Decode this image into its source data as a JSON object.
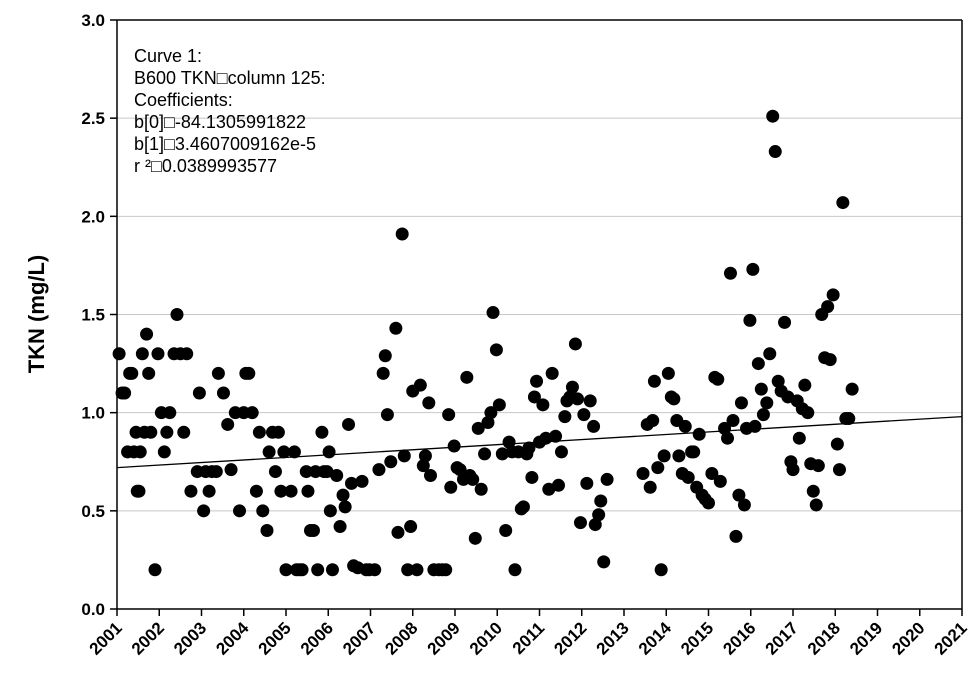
{
  "chart_data": {
    "type": "scatter",
    "ylabel": "TKN (mg/L)",
    "xlabel": "",
    "xlim": [
      2001,
      2021
    ],
    "ylim": [
      0,
      3.0
    ],
    "x_ticks": [
      "2001",
      "2002",
      "2003",
      "2004",
      "2005",
      "2006",
      "2007",
      "2008",
      "2009",
      "2010",
      "2011",
      "2012",
      "2013",
      "2014",
      "2015",
      "2016",
      "2017",
      "2018",
      "2019",
      "2020",
      "2021"
    ],
    "y_ticks": [
      "0.0",
      "0.5",
      "1.0",
      "1.5",
      "2.0",
      "2.5",
      "3.0"
    ],
    "grid": "horizontal",
    "annotation_lines": [
      "Curve 1:",
      "B600 TKN□column 125:",
      "Coefficients:",
      "b[0]□-84.1305991822",
      "b[1]□3.4607009162e-5",
      "r ²□0.0389993577"
    ],
    "trendline": {
      "x": [
        2001.0,
        2021.0
      ],
      "y": [
        0.72,
        0.98
      ]
    },
    "points": [
      [
        2001.05,
        1.3
      ],
      [
        2001.12,
        1.1
      ],
      [
        2001.18,
        1.1
      ],
      [
        2001.25,
        0.8
      ],
      [
        2001.3,
        1.2
      ],
      [
        2001.35,
        1.2
      ],
      [
        2001.4,
        0.8
      ],
      [
        2001.45,
        0.9
      ],
      [
        2001.48,
        0.6
      ],
      [
        2001.52,
        0.6
      ],
      [
        2001.55,
        0.8
      ],
      [
        2001.6,
        1.3
      ],
      [
        2001.65,
        0.9
      ],
      [
        2001.7,
        1.4
      ],
      [
        2001.75,
        1.2
      ],
      [
        2001.8,
        0.9
      ],
      [
        2001.9,
        0.2
      ],
      [
        2001.97,
        1.3
      ],
      [
        2002.05,
        1.0
      ],
      [
        2002.12,
        0.8
      ],
      [
        2002.18,
        0.9
      ],
      [
        2002.25,
        1.0
      ],
      [
        2002.35,
        1.3
      ],
      [
        2002.42,
        1.5
      ],
      [
        2002.5,
        1.3
      ],
      [
        2002.58,
        0.9
      ],
      [
        2002.65,
        1.3
      ],
      [
        2002.75,
        0.6
      ],
      [
        2002.9,
        0.7
      ],
      [
        2002.95,
        1.1
      ],
      [
        2003.05,
        0.5
      ],
      [
        2003.1,
        0.7
      ],
      [
        2003.18,
        0.6
      ],
      [
        2003.25,
        0.7
      ],
      [
        2003.35,
        0.7
      ],
      [
        2003.4,
        1.2
      ],
      [
        2003.52,
        1.1
      ],
      [
        2003.62,
        0.94
      ],
      [
        2003.7,
        0.71
      ],
      [
        2003.8,
        1.0
      ],
      [
        2003.9,
        0.5
      ],
      [
        2004.0,
        1.0
      ],
      [
        2004.05,
        1.2
      ],
      [
        2004.12,
        1.2
      ],
      [
        2004.2,
        1.0
      ],
      [
        2004.3,
        0.6
      ],
      [
        2004.37,
        0.9
      ],
      [
        2004.45,
        0.5
      ],
      [
        2004.55,
        0.4
      ],
      [
        2004.6,
        0.8
      ],
      [
        2004.68,
        0.9
      ],
      [
        2004.75,
        0.7
      ],
      [
        2004.82,
        0.9
      ],
      [
        2004.88,
        0.6
      ],
      [
        2004.95,
        0.8
      ],
      [
        2005.0,
        0.2
      ],
      [
        2005.12,
        0.6
      ],
      [
        2005.2,
        0.8
      ],
      [
        2005.25,
        0.2
      ],
      [
        2005.32,
        0.2
      ],
      [
        2005.38,
        0.2
      ],
      [
        2005.48,
        0.7
      ],
      [
        2005.52,
        0.6
      ],
      [
        2005.58,
        0.4
      ],
      [
        2005.65,
        0.4
      ],
      [
        2005.7,
        0.7
      ],
      [
        2005.75,
        0.2
      ],
      [
        2005.85,
        0.9
      ],
      [
        2005.9,
        0.7
      ],
      [
        2005.97,
        0.7
      ],
      [
        2006.02,
        0.8
      ],
      [
        2006.05,
        0.5
      ],
      [
        2006.1,
        0.2
      ],
      [
        2006.2,
        0.68
      ],
      [
        2006.28,
        0.42
      ],
      [
        2006.35,
        0.58
      ],
      [
        2006.4,
        0.52
      ],
      [
        2006.48,
        0.94
      ],
      [
        2006.55,
        0.64
      ],
      [
        2006.6,
        0.22
      ],
      [
        2006.7,
        0.21
      ],
      [
        2006.8,
        0.65
      ],
      [
        2006.9,
        0.2
      ],
      [
        2006.97,
        0.2
      ],
      [
        2007.1,
        0.2
      ],
      [
        2007.2,
        0.71
      ],
      [
        2007.3,
        1.2
      ],
      [
        2007.35,
        1.29
      ],
      [
        2007.4,
        0.99
      ],
      [
        2007.48,
        0.75
      ],
      [
        2007.6,
        1.43
      ],
      [
        2007.65,
        0.39
      ],
      [
        2007.75,
        1.91
      ],
      [
        2007.8,
        0.78
      ],
      [
        2007.88,
        0.2
      ],
      [
        2007.95,
        0.42
      ],
      [
        2008.0,
        1.11
      ],
      [
        2008.1,
        0.2
      ],
      [
        2008.18,
        1.14
      ],
      [
        2008.25,
        0.73
      ],
      [
        2008.3,
        0.78
      ],
      [
        2008.38,
        1.05
      ],
      [
        2008.42,
        0.68
      ],
      [
        2008.5,
        0.2
      ],
      [
        2008.62,
        0.2
      ],
      [
        2008.7,
        0.2
      ],
      [
        2008.78,
        0.2
      ],
      [
        2008.85,
        0.99
      ],
      [
        2008.9,
        0.62
      ],
      [
        2008.98,
        0.83
      ],
      [
        2009.05,
        0.72
      ],
      [
        2009.12,
        0.71
      ],
      [
        2009.2,
        0.66
      ],
      [
        2009.28,
        1.18
      ],
      [
        2009.35,
        0.68
      ],
      [
        2009.42,
        0.66
      ],
      [
        2009.48,
        0.36
      ],
      [
        2009.55,
        0.92
      ],
      [
        2009.62,
        0.61
      ],
      [
        2009.7,
        0.79
      ],
      [
        2009.78,
        0.95
      ],
      [
        2009.85,
        1.0
      ],
      [
        2009.9,
        1.51
      ],
      [
        2009.98,
        1.32
      ],
      [
        2010.05,
        1.04
      ],
      [
        2010.12,
        0.79
      ],
      [
        2010.2,
        0.4
      ],
      [
        2010.28,
        0.85
      ],
      [
        2010.35,
        0.8
      ],
      [
        2010.42,
        0.2
      ],
      [
        2010.5,
        0.8
      ],
      [
        2010.57,
        0.51
      ],
      [
        2010.62,
        0.52
      ],
      [
        2010.7,
        0.79
      ],
      [
        2010.75,
        0.82
      ],
      [
        2010.82,
        0.67
      ],
      [
        2010.88,
        1.08
      ],
      [
        2010.93,
        1.16
      ],
      [
        2011.0,
        0.85
      ],
      [
        2011.08,
        1.04
      ],
      [
        2011.15,
        0.87
      ],
      [
        2011.22,
        0.61
      ],
      [
        2011.3,
        1.2
      ],
      [
        2011.38,
        0.88
      ],
      [
        2011.45,
        0.63
      ],
      [
        2011.52,
        0.8
      ],
      [
        2011.6,
        0.98
      ],
      [
        2011.65,
        1.06
      ],
      [
        2011.72,
        1.08
      ],
      [
        2011.78,
        1.13
      ],
      [
        2011.85,
        1.35
      ],
      [
        2011.9,
        1.07
      ],
      [
        2011.97,
        0.44
      ],
      [
        2012.05,
        0.99
      ],
      [
        2012.12,
        0.64
      ],
      [
        2012.2,
        1.06
      ],
      [
        2012.28,
        0.93
      ],
      [
        2012.32,
        0.43
      ],
      [
        2012.4,
        0.48
      ],
      [
        2012.45,
        0.55
      ],
      [
        2012.52,
        0.24
      ],
      [
        2012.6,
        0.66
      ],
      [
        2013.45,
        0.69
      ],
      [
        2013.55,
        0.94
      ],
      [
        2013.62,
        0.62
      ],
      [
        2013.68,
        0.96
      ],
      [
        2013.72,
        1.16
      ],
      [
        2013.8,
        0.72
      ],
      [
        2013.88,
        0.2
      ],
      [
        2013.95,
        0.78
      ],
      [
        2014.05,
        1.2
      ],
      [
        2014.12,
        1.08
      ],
      [
        2014.18,
        1.07
      ],
      [
        2014.25,
        0.96
      ],
      [
        2014.3,
        0.78
      ],
      [
        2014.38,
        0.69
      ],
      [
        2014.45,
        0.93
      ],
      [
        2014.52,
        0.67
      ],
      [
        2014.6,
        0.8
      ],
      [
        2014.65,
        0.8
      ],
      [
        2014.72,
        0.62
      ],
      [
        2014.78,
        0.89
      ],
      [
        2014.85,
        0.58
      ],
      [
        2014.92,
        0.56
      ],
      [
        2015.0,
        0.54
      ],
      [
        2015.08,
        0.69
      ],
      [
        2015.15,
        1.18
      ],
      [
        2015.22,
        1.17
      ],
      [
        2015.28,
        0.65
      ],
      [
        2015.38,
        0.92
      ],
      [
        2015.45,
        0.87
      ],
      [
        2015.52,
        1.71
      ],
      [
        2015.58,
        0.96
      ],
      [
        2015.65,
        0.37
      ],
      [
        2015.72,
        0.58
      ],
      [
        2015.78,
        1.05
      ],
      [
        2015.85,
        0.53
      ],
      [
        2015.9,
        0.92
      ],
      [
        2015.98,
        1.47
      ],
      [
        2016.05,
        1.73
      ],
      [
        2016.1,
        0.93
      ],
      [
        2016.18,
        1.25
      ],
      [
        2016.25,
        1.12
      ],
      [
        2016.3,
        0.99
      ],
      [
        2016.38,
        1.05
      ],
      [
        2016.45,
        1.3
      ],
      [
        2016.52,
        2.51
      ],
      [
        2016.58,
        2.33
      ],
      [
        2016.65,
        1.16
      ],
      [
        2016.72,
        1.11
      ],
      [
        2016.8,
        1.46
      ],
      [
        2016.88,
        1.08
      ],
      [
        2016.95,
        0.75
      ],
      [
        2017.0,
        0.71
      ],
      [
        2017.1,
        1.06
      ],
      [
        2017.15,
        0.87
      ],
      [
        2017.22,
        1.02
      ],
      [
        2017.28,
        1.14
      ],
      [
        2017.35,
        1.0
      ],
      [
        2017.42,
        0.74
      ],
      [
        2017.48,
        0.6
      ],
      [
        2017.55,
        0.53
      ],
      [
        2017.6,
        0.73
      ],
      [
        2017.68,
        1.5
      ],
      [
        2017.75,
        1.28
      ],
      [
        2017.82,
        1.54
      ],
      [
        2017.88,
        1.27
      ],
      [
        2017.95,
        1.6
      ],
      [
        2018.05,
        0.84
      ],
      [
        2018.1,
        0.71
      ],
      [
        2018.18,
        2.07
      ],
      [
        2018.25,
        0.97
      ],
      [
        2018.32,
        0.97
      ],
      [
        2018.4,
        1.12
      ]
    ]
  }
}
